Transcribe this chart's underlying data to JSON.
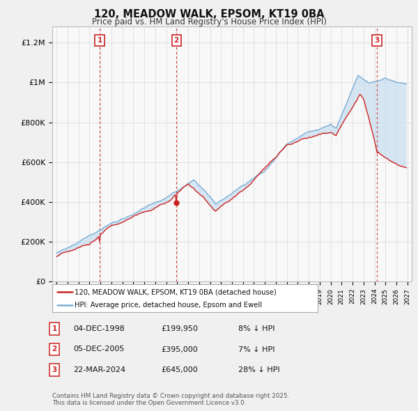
{
  "title": "120, MEADOW WALK, EPSOM, KT19 0BA",
  "subtitle": "Price paid vs. HM Land Registry's House Price Index (HPI)",
  "sale_dates_label": [
    "04-DEC-1998",
    "05-DEC-2005",
    "22-MAR-2024"
  ],
  "sale_prices": [
    199950,
    395000,
    645000
  ],
  "sale_labels": [
    "1",
    "2",
    "3"
  ],
  "legend_line1": "120, MEADOW WALK, EPSOM, KT19 0BA (detached house)",
  "legend_line2": "HPI: Average price, detached house, Epsom and Ewell",
  "table_rows": [
    [
      "1",
      "04-DEC-1998",
      "£199,950",
      "8% ↓ HPI"
    ],
    [
      "2",
      "05-DEC-2005",
      "£395,000",
      "7% ↓ HPI"
    ],
    [
      "3",
      "22-MAR-2024",
      "£645,000",
      "28% ↓ HPI"
    ]
  ],
  "footnote": "Contains HM Land Registry data © Crown copyright and database right 2025.\nThis data is licensed under the Open Government Licence v3.0.",
  "hpi_line_color": "#7aadd4",
  "price_line_color": "#cc2222",
  "dashed_vline_color": "#cc2222",
  "background_color": "#f0f0f0",
  "plot_bg_color": "#f8f8f8",
  "legend_bg": "#ffffff",
  "yticks": [
    0,
    200000,
    400000,
    600000,
    800000,
    1000000,
    1200000
  ],
  "ylabels": [
    "£0",
    "£200K",
    "£400K",
    "£600K",
    "£800K",
    "£1M",
    "£1.2M"
  ],
  "ylim": [
    0,
    1280000
  ],
  "xlim_start": 1994.6,
  "xlim_end": 2027.4,
  "sale_years": [
    1998.92,
    2005.92,
    2024.22
  ]
}
